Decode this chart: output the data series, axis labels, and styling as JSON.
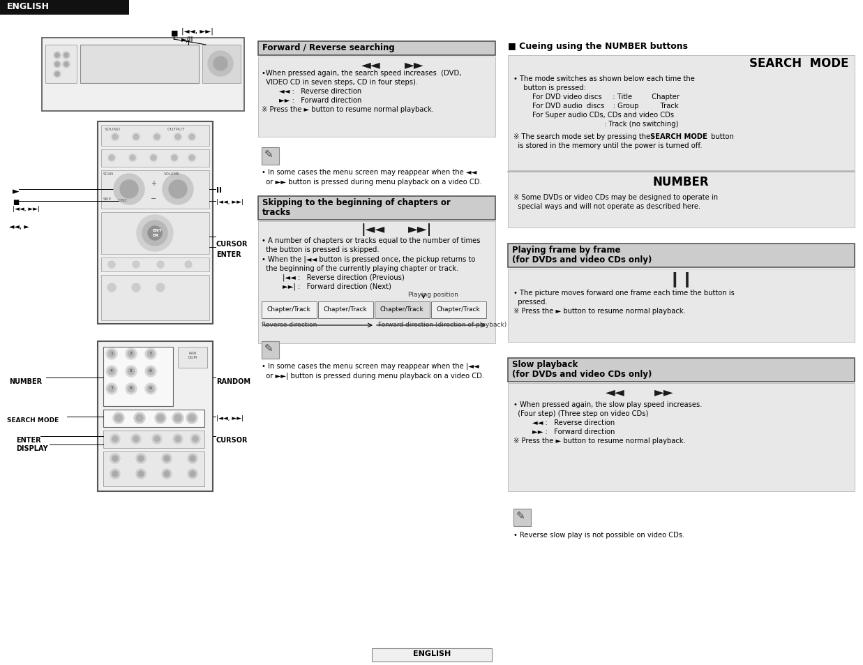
{
  "page_bg": "#ffffff",
  "header_bg": "#1a1a1a",
  "header_text": "ENGLISH",
  "header_text_color": "#ffffff",
  "footer_text": "ENGLISH",
  "section_bg": "#e8e8e8",
  "box_title_bg": "#cccccc",
  "right_section_bg": "#e8e8e8",
  "divider_color": "#888888",
  "forward_reverse_title": "Forward / Reverse searching",
  "skipping_title1": "Skipping to the beginning of chapters or",
  "skipping_title2": "tracks",
  "chapter_track_labels": [
    "Chapter/Track",
    "Chapter/Track",
    "Chapter/Track",
    "Chapter/Track"
  ],
  "reverse_dir_label": "Reverse direction",
  "forward_dir_label": "Forward direction (direction of playback)",
  "cueing_title": "■ Cueing using the NUMBER buttons",
  "search_mode_title": "SEARCH  MODE",
  "number_title": "NUMBER",
  "frame_title1": "Playing frame by frame",
  "frame_title2": "(for DVDs and video CDs only)",
  "slow_title1": "Slow playback",
  "slow_title2": "(for DVDs and video CDs only)"
}
